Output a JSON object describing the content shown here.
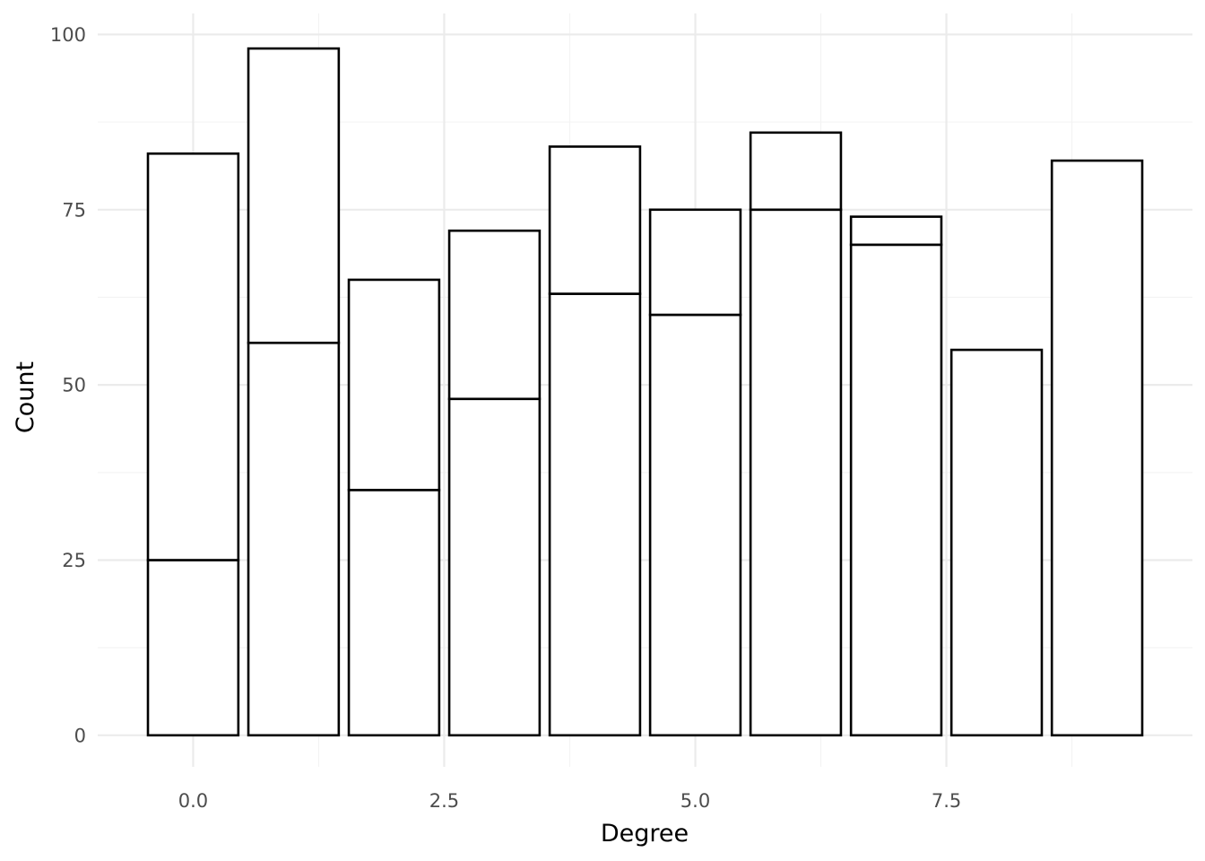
{
  "chart_data": {
    "type": "bar",
    "stacked": true,
    "title": "",
    "xlabel": "Degree",
    "ylabel": "Count",
    "x": [
      0,
      1,
      2,
      3,
      4,
      5,
      6,
      7,
      8,
      9
    ],
    "series": [
      {
        "values": [
          25,
          56,
          35,
          48,
          63,
          60,
          75,
          70,
          0,
          0
        ]
      },
      {
        "values": [
          58,
          42,
          30,
          24,
          21,
          15,
          11,
          4,
          55,
          82
        ]
      }
    ],
    "totals": [
      83,
      98,
      65,
      72,
      84,
      75,
      86,
      74,
      55,
      82
    ],
    "xlim": [
      -0.95,
      9.95
    ],
    "ylim": [
      -4.5,
      103
    ],
    "x_ticks": [
      {
        "value": 0,
        "label": "0.0"
      },
      {
        "value": 2.5,
        "label": "2.5"
      },
      {
        "value": 5,
        "label": "5.0"
      },
      {
        "value": 7.5,
        "label": "7.5"
      }
    ],
    "y_ticks": [
      {
        "value": 0,
        "label": "0"
      },
      {
        "value": 25,
        "label": "25"
      },
      {
        "value": 50,
        "label": "50"
      },
      {
        "value": 75,
        "label": "75"
      },
      {
        "value": 100,
        "label": "100"
      }
    ],
    "x_minor_ticks": [
      1.25,
      3.75,
      6.25,
      8.75
    ],
    "y_minor_ticks": [
      12.5,
      37.5,
      62.5,
      87.5
    ],
    "grid": true,
    "legend": "none",
    "colors": {
      "bar_fill": "#ffffff",
      "bar_outline": "#000000",
      "grid": "#ebebeb",
      "tick_text": "#4d4d4d",
      "background": "#ffffff"
    }
  }
}
